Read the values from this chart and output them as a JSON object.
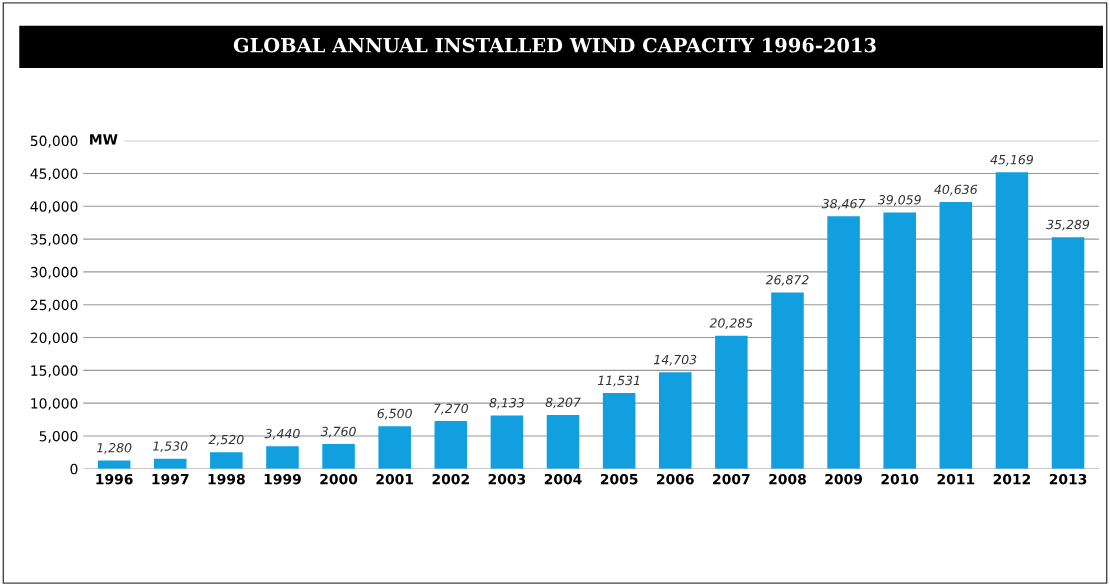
{
  "chart_data": {
    "type": "bar",
    "title": "GLOBAL ANNUAL INSTALLED WIND CAPACITY 1996-2013",
    "ylabel": "MW",
    "categories": [
      "1996",
      "1997",
      "1998",
      "1999",
      "2000",
      "2001",
      "2002",
      "2003",
      "2004",
      "2005",
      "2006",
      "2007",
      "2008",
      "2009",
      "2010",
      "2011",
      "2012",
      "2013"
    ],
    "values": [
      1280,
      1530,
      2520,
      3440,
      3760,
      6500,
      7270,
      8133,
      8207,
      11531,
      14703,
      20285,
      26872,
      38467,
      39059,
      40636,
      45169,
      35289
    ],
    "value_labels": [
      "1,280",
      "1,530",
      "2,520",
      "3,440",
      "3,760",
      "6,500",
      "7,270",
      "8,133",
      "8,207",
      "11,531",
      "14,703",
      "20,285",
      "26,872",
      "38,467",
      "39,059",
      "40,636",
      "45,169",
      "35,289"
    ],
    "color": "#119fe0",
    "ylim": [
      0,
      50000
    ],
    "yticks": [
      {
        "value": 0,
        "label": "0"
      },
      {
        "value": 5000,
        "label": "5,000"
      },
      {
        "value": 10000,
        "label": "10,000"
      },
      {
        "value": 15000,
        "label": "15,000"
      },
      {
        "value": 20000,
        "label": "20,000"
      },
      {
        "value": 25000,
        "label": "25,000"
      },
      {
        "value": 30000,
        "label": "30,000"
      },
      {
        "value": 35000,
        "label": "35,000"
      },
      {
        "value": 40000,
        "label": "40,000"
      },
      {
        "value": 45000,
        "label": "45,000"
      },
      {
        "value": 50000,
        "label": "50,000"
      }
    ],
    "grid": "y"
  }
}
